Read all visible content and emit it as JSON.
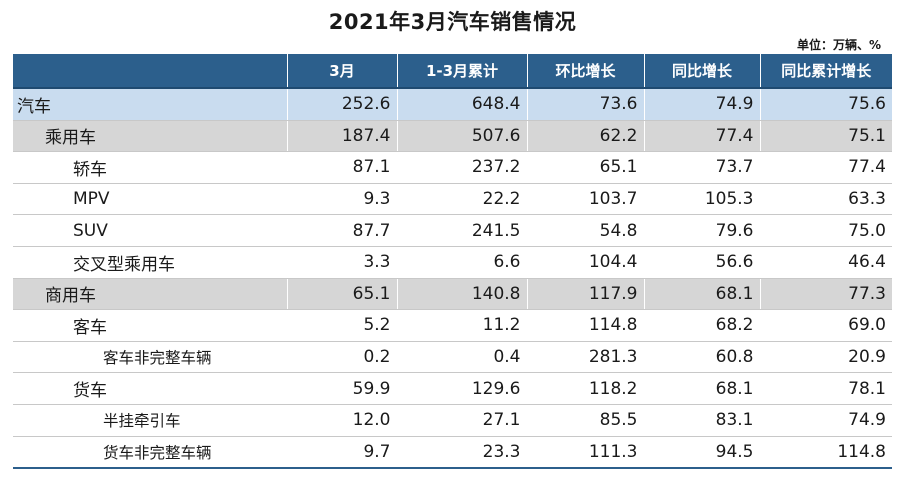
{
  "chart_data": {
    "type": "table",
    "title": "2021年3月汽车销售情况",
    "unit_note": "单位：万辆、%",
    "columns": [
      "",
      "3月",
      "1-3月累计",
      "环比增长",
      "同比增长",
      "同比累计增长"
    ],
    "rows": [
      {
        "label": "汽车",
        "level": 0,
        "values": [
          "252.6",
          "648.4",
          "73.6",
          "74.9",
          "75.6"
        ]
      },
      {
        "label": "乘用车",
        "level": 1,
        "values": [
          "187.4",
          "507.6",
          "62.2",
          "77.4",
          "75.1"
        ]
      },
      {
        "label": "轿车",
        "level": 2,
        "values": [
          "87.1",
          "237.2",
          "65.1",
          "73.7",
          "77.4"
        ]
      },
      {
        "label": "MPV",
        "level": 2,
        "values": [
          "9.3",
          "22.2",
          "103.7",
          "105.3",
          "63.3"
        ]
      },
      {
        "label": "SUV",
        "level": 2,
        "values": [
          "87.7",
          "241.5",
          "54.8",
          "79.6",
          "75.0"
        ]
      },
      {
        "label": "交叉型乘用车",
        "level": 2,
        "values": [
          "3.3",
          "6.6",
          "104.4",
          "56.6",
          "46.4"
        ]
      },
      {
        "label": "商用车",
        "level": 1,
        "values": [
          "65.1",
          "140.8",
          "117.9",
          "68.1",
          "77.3"
        ]
      },
      {
        "label": "客车",
        "level": 2,
        "values": [
          "5.2",
          "11.2",
          "114.8",
          "68.2",
          "69.0"
        ]
      },
      {
        "label": "客车非完整车辆",
        "level": 3,
        "values": [
          "0.2",
          "0.4",
          "281.3",
          "60.8",
          "20.9"
        ]
      },
      {
        "label": "货车",
        "level": 2,
        "values": [
          "59.9",
          "129.6",
          "118.2",
          "68.1",
          "78.1"
        ]
      },
      {
        "label": "半挂牵引车",
        "level": 3,
        "values": [
          "12.0",
          "27.1",
          "85.5",
          "83.1",
          "74.9"
        ]
      },
      {
        "label": "货车非完整车辆",
        "level": 3,
        "values": [
          "9.7",
          "23.3",
          "111.3",
          "94.5",
          "114.8"
        ]
      }
    ],
    "colors": {
      "header_bg": "#2c5f8c",
      "level0_bg": "#c9dcef",
      "level1_bg": "#d6d6d6"
    }
  }
}
